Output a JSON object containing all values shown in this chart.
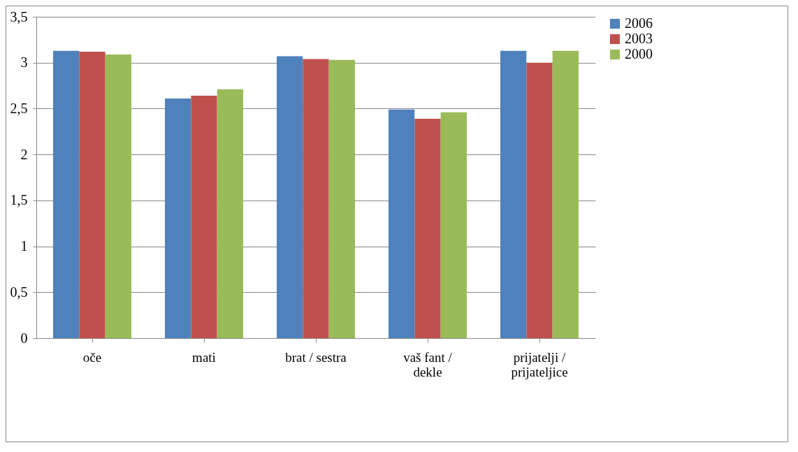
{
  "chart_data": {
    "type": "bar",
    "categories": [
      "oče",
      "mati",
      "brat / sestra",
      "vaš fant /\ndekle",
      "prijatelji /\nprijateljice"
    ],
    "series": [
      {
        "name": "2006",
        "color": "#4f81bd",
        "values": [
          3.13,
          2.61,
          3.07,
          2.49,
          3.13
        ]
      },
      {
        "name": "2003",
        "color": "#c0504d",
        "values": [
          3.12,
          2.64,
          3.04,
          2.39,
          3.0
        ]
      },
      {
        "name": "2000",
        "color": "#9bbb59",
        "values": [
          3.09,
          2.71,
          3.03,
          2.46,
          3.13
        ]
      }
    ],
    "ylim": [
      0,
      3.5
    ],
    "yticks": [
      0,
      {
        "value": 0.5,
        "label": "0,5"
      },
      1,
      {
        "value": 1.5,
        "label": "1,5"
      },
      2,
      {
        "value": 2.5,
        "label": "2,5"
      },
      3,
      {
        "value": 3.5,
        "label": "3,5"
      }
    ],
    "grid": "y",
    "legend": "right"
  }
}
